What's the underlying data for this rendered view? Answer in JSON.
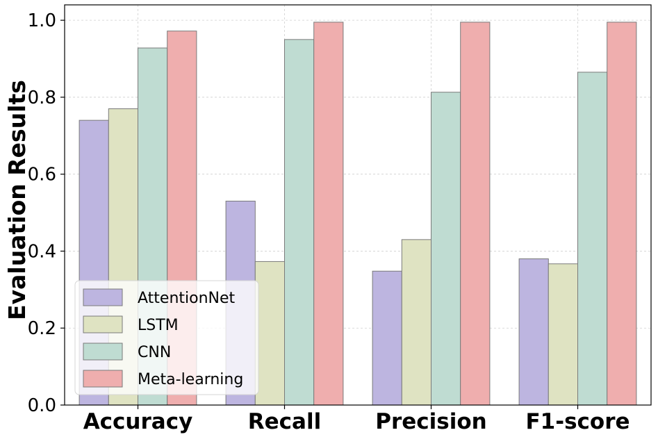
{
  "chart_data": {
    "type": "bar",
    "title": "",
    "xlabel": "",
    "ylabel": "Evaluation Results",
    "ylim": [
      0,
      1.04
    ],
    "yticks": [
      "0.0",
      "0.2",
      "0.4",
      "0.6",
      "0.8",
      "1.0"
    ],
    "grid": true,
    "legend_position": "lower-left",
    "categories": [
      "Accuracy",
      "Recall",
      "Precision",
      "F1-score"
    ],
    "series": [
      {
        "name": "AttentionNet",
        "color": "#bdb5e0",
        "values": [
          0.74,
          0.53,
          0.348,
          0.38
        ]
      },
      {
        "name": "LSTM",
        "color": "#dfe3c2",
        "values": [
          0.77,
          0.373,
          0.43,
          0.367
        ]
      },
      {
        "name": "CNN",
        "color": "#bfdcd2",
        "values": [
          0.928,
          0.95,
          0.813,
          0.865
        ]
      },
      {
        "name": "Meta-learning",
        "color": "#efaeae",
        "values": [
          0.972,
          0.995,
          0.995,
          0.995
        ]
      }
    ]
  }
}
